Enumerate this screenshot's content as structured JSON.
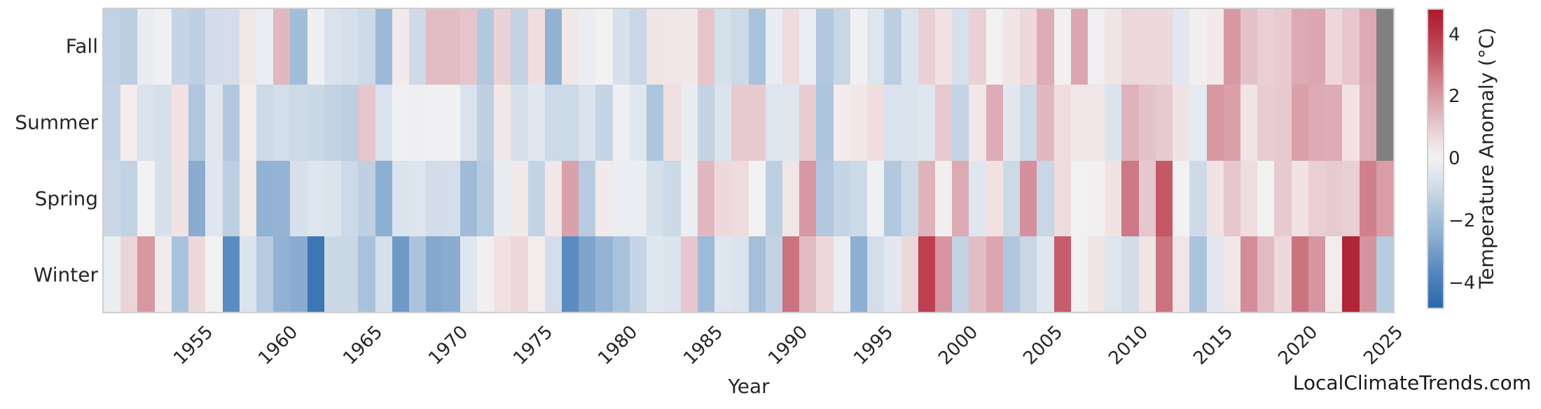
{
  "footer": {
    "text": "LocalClimateTrends.com"
  },
  "colors": {
    "background": "#ffffff",
    "text": "#262626",
    "frame_border": "#cfcfcf",
    "missing": "#808080"
  },
  "chart_data": {
    "type": "heatmap",
    "title": "",
    "xlabel": "Year",
    "ylabel": "",
    "rows": [
      "Fall",
      "Summer",
      "Spring",
      "Winter"
    ],
    "years": [
      1950,
      1951,
      1952,
      1953,
      1954,
      1955,
      1956,
      1957,
      1958,
      1959,
      1960,
      1961,
      1962,
      1963,
      1964,
      1965,
      1966,
      1967,
      1968,
      1969,
      1970,
      1971,
      1972,
      1973,
      1974,
      1975,
      1976,
      1977,
      1978,
      1979,
      1980,
      1981,
      1982,
      1983,
      1984,
      1985,
      1986,
      1987,
      1988,
      1989,
      1990,
      1991,
      1992,
      1993,
      1994,
      1995,
      1996,
      1997,
      1998,
      1999,
      2000,
      2001,
      2002,
      2003,
      2004,
      2005,
      2006,
      2007,
      2008,
      2009,
      2010,
      2011,
      2012,
      2013,
      2014,
      2015,
      2016,
      2017,
      2018,
      2019,
      2020,
      2021,
      2022,
      2023,
      2024,
      2025
    ],
    "x_ticks": [
      1955,
      1960,
      1965,
      1970,
      1975,
      1980,
      1985,
      1990,
      1995,
      2000,
      2005,
      2010,
      2015,
      2020,
      2025
    ],
    "grid": false,
    "legend_position": "right-colorbar",
    "colorbar": {
      "label": "Temperature Anomaly (°C)",
      "ticks": [
        4,
        2,
        0,
        -2,
        -4
      ],
      "tick_labels": [
        "4",
        "2",
        "0",
        "−2",
        "−4"
      ],
      "vmin": -4.8,
      "vmax": 4.8
    },
    "missing_value_color": "#808080",
    "colormap_stops": [
      [
        -4.8,
        "#2a68ad"
      ],
      [
        -3.5,
        "#5b8cc0"
      ],
      [
        -2.6,
        "#89acd0"
      ],
      [
        -1.8,
        "#a9c2dc"
      ],
      [
        -1.0,
        "#ccd9e7"
      ],
      [
        -0.5,
        "#dfe6ef"
      ],
      [
        0.0,
        "#f2f1f2"
      ],
      [
        0.5,
        "#f1e1e2"
      ],
      [
        1.0,
        "#e8ccd1"
      ],
      [
        1.5,
        "#dfb3bc"
      ],
      [
        2.1,
        "#d798a2"
      ],
      [
        2.8,
        "#cc7380"
      ],
      [
        3.4,
        "#c25260"
      ],
      [
        4.0,
        "#b93748"
      ],
      [
        4.8,
        "#ab1a2d"
      ]
    ],
    "series": [
      {
        "name": "Fall",
        "values": [
          -1.25,
          -1.4,
          -0.25,
          -0.05,
          -1.15,
          -1.35,
          -0.85,
          -0.8,
          0.35,
          -0.2,
          1.4,
          -2.0,
          -0.1,
          -0.65,
          -0.75,
          -1.0,
          -2.1,
          0.25,
          -0.95,
          1.3,
          1.3,
          1.15,
          -1.6,
          0.85,
          -1.2,
          0.6,
          -2.4,
          0.3,
          -0.2,
          0.0,
          -0.7,
          -1.1,
          0.4,
          0.35,
          0.3,
          1.15,
          -0.75,
          -1.0,
          -1.8,
          -0.25,
          0.65,
          -0.2,
          -1.6,
          -1.1,
          -0.05,
          -0.55,
          -1.4,
          -0.6,
          0.9,
          0.5,
          -0.7,
          0.9,
          0.0,
          0.4,
          0.7,
          1.65,
          0.05,
          1.8,
          -0.05,
          0.4,
          0.75,
          0.7,
          0.7,
          -0.45,
          0.1,
          0.25,
          2.1,
          1.2,
          0.95,
          1.05,
          1.7,
          1.8,
          0.75,
          1.1,
          1.7,
          null
        ]
      },
      {
        "name": "Summer",
        "values": [
          -1.15,
          0.15,
          -0.65,
          -0.75,
          0.5,
          -1.65,
          -0.45,
          -1.6,
          0.15,
          -1.0,
          -0.8,
          -1.0,
          -1.05,
          -1.2,
          -1.35,
          1.1,
          -0.65,
          -0.05,
          -0.1,
          -0.05,
          -0.05,
          -0.65,
          -1.3,
          0.3,
          -0.7,
          -0.4,
          -1.0,
          -1.0,
          -0.6,
          -1.15,
          -0.1,
          -0.45,
          -1.7,
          0.55,
          -0.25,
          -1.2,
          -0.6,
          1.05,
          1.05,
          -0.55,
          -0.5,
          1.0,
          -1.7,
          0.2,
          0.3,
          0.6,
          -0.65,
          -0.6,
          -0.5,
          1.05,
          -1.15,
          0.3,
          1.65,
          -0.4,
          -1.0,
          1.4,
          0.6,
          0.35,
          0.35,
          -0.6,
          1.5,
          1.2,
          1.05,
          0.45,
          -0.35,
          2.1,
          1.9,
          0.4,
          1.0,
          1.05,
          1.9,
          1.7,
          1.65,
          0.5,
          1.6,
          null
        ]
      },
      {
        "name": "Spring",
        "values": [
          -1.05,
          -1.25,
          0.0,
          -0.7,
          0.45,
          -2.6,
          -0.5,
          -1.35,
          0.25,
          -2.4,
          -2.3,
          -0.7,
          -0.55,
          -0.6,
          -1.0,
          -1.3,
          -2.5,
          -0.6,
          -0.55,
          -0.85,
          -0.8,
          -2.05,
          -1.45,
          -0.25,
          0.25,
          -1.2,
          0.3,
          1.9,
          -1.5,
          0.25,
          -0.2,
          -0.2,
          -0.75,
          -1.0,
          -0.2,
          1.4,
          0.7,
          0.65,
          0.0,
          -1.35,
          0.35,
          2.1,
          -1.6,
          -1.15,
          -1.0,
          -0.05,
          -1.6,
          -1.0,
          1.5,
          0.1,
          1.7,
          -0.5,
          0.5,
          -1.0,
          2.25,
          -1.1,
          0.65,
          0.0,
          0.05,
          0.45,
          2.7,
          1.1,
          3.3,
          0.0,
          -0.95,
          0.45,
          1.1,
          0.6,
          0.0,
          1.05,
          0.45,
          0.95,
          1.05,
          0.95,
          2.55,
          2.0
        ]
      },
      {
        "name": "Winter",
        "values": [
          -0.2,
          0.8,
          2.1,
          0.2,
          -1.8,
          0.7,
          0.0,
          -3.5,
          -0.6,
          -1.5,
          -2.4,
          -2.6,
          -4.3,
          -1.05,
          -1.05,
          -1.8,
          -0.75,
          -3.1,
          -1.75,
          -2.7,
          -2.6,
          -0.5,
          0.05,
          0.5,
          0.7,
          0.15,
          -0.8,
          -3.5,
          -2.8,
          -2.3,
          -1.8,
          -1.15,
          -0.5,
          -0.6,
          1.1,
          -2.1,
          -0.55,
          -0.6,
          -1.9,
          -1.2,
          2.8,
          1.35,
          0.75,
          -0.2,
          -2.5,
          -0.8,
          -0.4,
          0.75,
          3.8,
          2.15,
          -1.2,
          1.3,
          1.8,
          -1.65,
          -1.1,
          -0.5,
          3.2,
          0.0,
          0.4,
          -0.55,
          -0.85,
          0.4,
          2.8,
          0.35,
          -1.75,
          -0.4,
          0.35,
          2.3,
          1.35,
          0.7,
          2.8,
          2.15,
          0.15,
          4.5,
          2.2,
          -1.5
        ]
      }
    ]
  }
}
